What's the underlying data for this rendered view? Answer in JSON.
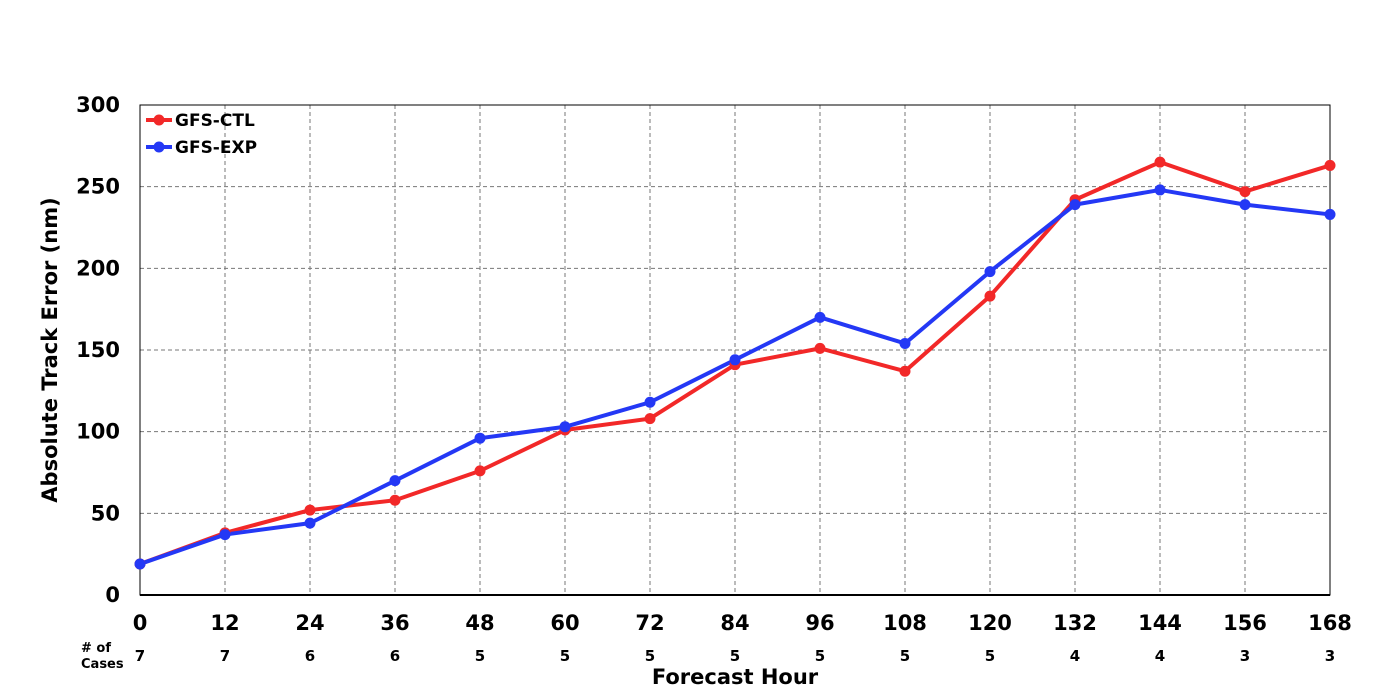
{
  "chart_data": {
    "type": "line",
    "title": "",
    "xlabel": "Forecast Hour",
    "ylabel": "Absolute Track Error (nm)",
    "x": [
      0,
      12,
      24,
      36,
      48,
      60,
      72,
      84,
      96,
      108,
      120,
      132,
      144,
      156,
      168
    ],
    "xlim": [
      0,
      168
    ],
    "ylim": [
      0,
      300
    ],
    "yticks": [
      0,
      50,
      100,
      150,
      200,
      250,
      300
    ],
    "grid": true,
    "legend_position": "top-left",
    "series": [
      {
        "name": "GFS-CTL",
        "color": "#f22828",
        "values": [
          19,
          38,
          52,
          58,
          76,
          101,
          108,
          141,
          151,
          137,
          183,
          242,
          265,
          247,
          263
        ]
      },
      {
        "name": "GFS-EXP",
        "color": "#2438f5",
        "values": [
          19,
          37,
          44,
          70,
          96,
          103,
          118,
          144,
          170,
          154,
          198,
          239,
          248,
          239,
          233
        ]
      }
    ],
    "cases_header_line1": "# of",
    "cases_header_line2": "Cases",
    "cases": [
      7,
      7,
      6,
      6,
      5,
      5,
      5,
      5,
      5,
      5,
      5,
      4,
      4,
      3,
      3
    ]
  }
}
